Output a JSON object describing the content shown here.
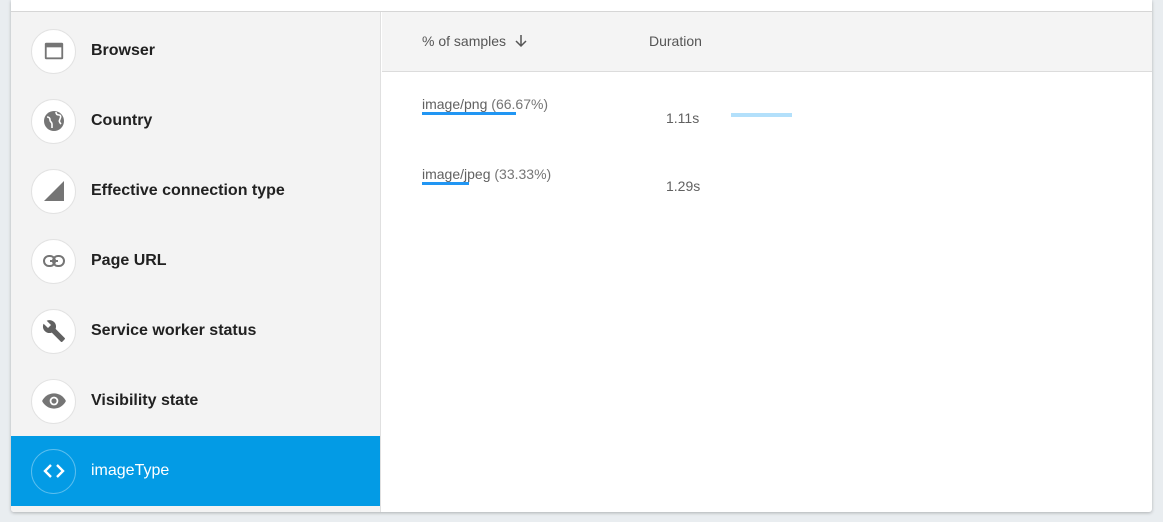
{
  "sidebar": {
    "items": [
      {
        "label": "Browser",
        "icon": "browser-window-icon",
        "selected": false
      },
      {
        "label": "Country",
        "icon": "globe-icon",
        "selected": false
      },
      {
        "label": "Effective connection type",
        "icon": "signal-icon",
        "selected": false
      },
      {
        "label": "Page URL",
        "icon": "link-icon",
        "selected": false
      },
      {
        "label": "Service worker status",
        "icon": "wrench-icon",
        "selected": false
      },
      {
        "label": "Visibility state",
        "icon": "eye-icon",
        "selected": false
      },
      {
        "label": "imageType",
        "icon": "code-icon",
        "selected": true
      }
    ]
  },
  "table": {
    "headers": {
      "samples": "% of samples",
      "duration": "Duration",
      "sort_icon": "arrow-down-icon"
    },
    "rows": [
      {
        "label": "image/png",
        "pct": "(66.67%)",
        "share": 66.67,
        "duration": "1.11s",
        "duration_bar": true
      },
      {
        "label": "image/jpeg",
        "pct": "(33.33%)",
        "share": 33.33,
        "duration": "1.29s",
        "duration_bar": false
      }
    ]
  },
  "colors": {
    "accent": "#039be5",
    "bar": "#2196f3",
    "duration_bar": "#b3e0fb"
  }
}
